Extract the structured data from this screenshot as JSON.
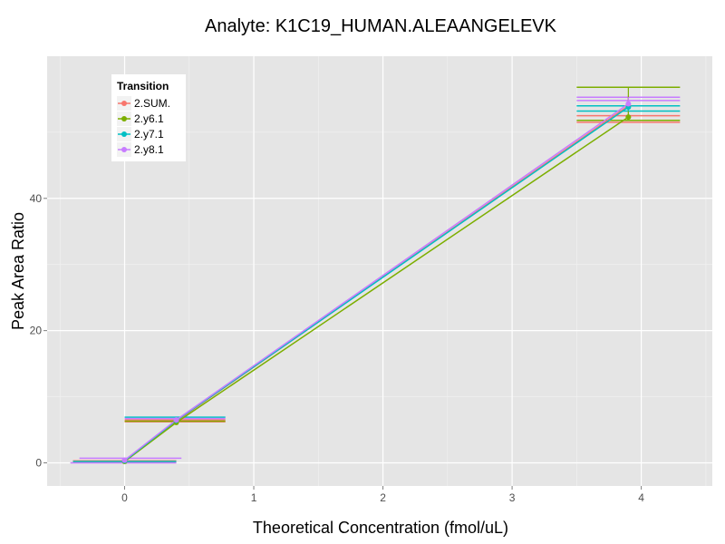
{
  "chart_data": {
    "type": "line",
    "title": "Analyte: K1C19_HUMAN.ALEAANGELEVK",
    "xlabel": "Theoretical Concentration (fmol/uL)",
    "ylabel": "Peak Area Ratio",
    "xlim": [
      -0.6,
      4.55
    ],
    "ylim": [
      -3.5,
      61.5
    ],
    "x_ticks": [
      0,
      1,
      2,
      3,
      4
    ],
    "y_ticks": [
      0,
      20,
      40
    ],
    "grid": true,
    "legend": {
      "title": "Transition",
      "position": "top-left",
      "entries": [
        "2.SUM.",
        "2.y6.1",
        "2.y7.1",
        "2.y8.1"
      ]
    },
    "colors": {
      "2.SUM.": "#F8766D",
      "2.y6.1": "#7CAE00",
      "2.y7.1": "#00BFC4",
      "2.y8.1": "#C77CFF"
    },
    "series": [
      {
        "name": "2.SUM.",
        "x": [
          0,
          0.4,
          3.9
        ],
        "y": [
          0.3,
          6.3,
          54.0
        ],
        "hlines": [
          {
            "xmin": -0.4,
            "xmax": 0.4,
            "y": 0.1
          },
          {
            "xmin": -0.4,
            "xmax": 0.4,
            "y": 0.3
          },
          {
            "xmin": 0,
            "xmax": 0.78,
            "y": 6.2
          },
          {
            "xmin": 0,
            "xmax": 0.78,
            "y": 6.5
          },
          {
            "xmin": 3.5,
            "xmax": 4.3,
            "y": 51.5
          },
          {
            "xmin": 3.5,
            "xmax": 4.3,
            "y": 52.5
          }
        ],
        "errorbar": {
          "x": 3.9,
          "ymin": 52.5,
          "ymax": 55.5
        }
      },
      {
        "name": "2.y6.1",
        "x": [
          0,
          0.4,
          3.9
        ],
        "y": [
          0.2,
          6.1,
          52.3
        ],
        "hlines": [
          {
            "xmin": -0.4,
            "xmax": 0.4,
            "y": 0.2
          },
          {
            "xmin": 0,
            "xmax": 0.78,
            "y": 6.3
          },
          {
            "xmin": 3.5,
            "xmax": 4.3,
            "y": 51.8
          },
          {
            "xmin": 3.5,
            "xmax": 4.3,
            "y": 56.8
          }
        ],
        "errorbar": {
          "x": 3.9,
          "ymin": 52.3,
          "ymax": 56.8
        }
      },
      {
        "name": "2.y7.1",
        "x": [
          0,
          0.4,
          3.9
        ],
        "y": [
          0.3,
          6.4,
          53.8
        ],
        "hlines": [
          {
            "xmin": -0.4,
            "xmax": 0.4,
            "y": 0.2
          },
          {
            "xmin": 0,
            "xmax": 0.78,
            "y": 6.9
          },
          {
            "xmin": 3.5,
            "xmax": 4.3,
            "y": 53.2
          },
          {
            "xmin": 3.5,
            "xmax": 4.3,
            "y": 54.0
          }
        ],
        "errorbar": {
          "x": 3.9,
          "ymin": 53.2,
          "ymax": 54.0
        }
      },
      {
        "name": "2.y8.1",
        "x": [
          0,
          0.4,
          3.9
        ],
        "y": [
          0.4,
          6.5,
          54.3
        ],
        "hlines": [
          {
            "xmin": -0.42,
            "xmax": 0.4,
            "y": 0.0
          },
          {
            "xmin": -0.35,
            "xmax": 0.44,
            "y": 0.7
          },
          {
            "xmin": 0,
            "xmax": 0.78,
            "y": 6.7
          },
          {
            "xmin": 3.5,
            "xmax": 4.3,
            "y": 54.8
          },
          {
            "xmin": 3.5,
            "xmax": 4.3,
            "y": 55.3
          }
        ],
        "errorbar": {
          "x": 3.9,
          "ymin": 54.3,
          "ymax": 55.3
        }
      }
    ]
  }
}
